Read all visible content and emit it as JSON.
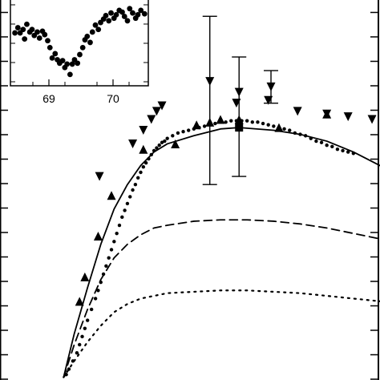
{
  "chart_data": [
    {
      "id": "main",
      "type": "scatter",
      "series": [
        {
          "kind": "dense-points",
          "marker": "small-dot",
          "points": [
            [
              0.02,
              0.02
            ],
            [
              0.03,
              0.04
            ],
            [
              0.045,
              0.07
            ],
            [
              0.06,
              0.1
            ],
            [
              0.07,
              0.13
            ],
            [
              0.08,
              0.16
            ],
            [
              0.09,
              0.19
            ],
            [
              0.1,
              0.22
            ],
            [
              0.115,
              0.26
            ],
            [
              0.13,
              0.3
            ],
            [
              0.14,
              0.33
            ],
            [
              0.15,
              0.36
            ],
            [
              0.16,
              0.39
            ],
            [
              0.17,
              0.42
            ],
            [
              0.18,
              0.45
            ],
            [
              0.19,
              0.48
            ],
            [
              0.2,
              0.51
            ],
            [
              0.21,
              0.54
            ],
            [
              0.22,
              0.57
            ],
            [
              0.23,
              0.6
            ],
            [
              0.24,
              0.625
            ],
            [
              0.25,
              0.65
            ],
            [
              0.26,
              0.675
            ],
            [
              0.27,
              0.7
            ],
            [
              0.28,
              0.72
            ],
            [
              0.29,
              0.745
            ],
            [
              0.3,
              0.765
            ],
            [
              0.31,
              0.785
            ],
            [
              0.32,
              0.8
            ],
            [
              0.33,
              0.815
            ],
            [
              0.34,
              0.83
            ],
            [
              0.35,
              0.845
            ],
            [
              0.36,
              0.855
            ],
            [
              0.37,
              0.865
            ],
            [
              0.38,
              0.875
            ],
            [
              0.39,
              0.88
            ],
            [
              0.4,
              0.89
            ],
            [
              0.42,
              0.9
            ],
            [
              0.44,
              0.91
            ],
            [
              0.46,
              0.915
            ],
            [
              0.48,
              0.92
            ],
            [
              0.5,
              0.925
            ],
            [
              0.52,
              0.93
            ],
            [
              0.54,
              0.935
            ],
            [
              0.56,
              0.94
            ],
            [
              0.58,
              0.945
            ],
            [
              0.6,
              0.95
            ],
            [
              0.62,
              0.95
            ],
            [
              0.64,
              0.955
            ],
            [
              0.66,
              0.955
            ],
            [
              0.68,
              0.955
            ],
            [
              0.7,
              0.955
            ],
            [
              0.72,
              0.95
            ],
            [
              0.74,
              0.95
            ],
            [
              0.76,
              0.945
            ],
            [
              0.78,
              0.94
            ],
            [
              0.8,
              0.935
            ],
            [
              0.82,
              0.93
            ],
            [
              0.84,
              0.925
            ],
            [
              0.86,
              0.92
            ],
            [
              0.88,
              0.91
            ],
            [
              0.9,
              0.905
            ],
            [
              0.92,
              0.9
            ],
            [
              0.94,
              0.89
            ],
            [
              0.96,
              0.88
            ],
            [
              0.98,
              0.875
            ],
            [
              1.0,
              0.865
            ],
            [
              1.02,
              0.86
            ],
            [
              1.04,
              0.85
            ],
            [
              1.06,
              0.845
            ],
            [
              1.08,
              0.84
            ],
            [
              1.1,
              0.835
            ]
          ]
        },
        {
          "kind": "triangles-down",
          "marker": "triangle-down",
          "points": [
            [
              0.145,
              0.75
            ],
            [
              0.27,
              0.87
            ],
            [
              0.31,
              0.92
            ],
            [
              0.34,
              0.96
            ],
            [
              0.36,
              0.99
            ],
            [
              0.38,
              1.01
            ],
            [
              0.66,
              1.02
            ],
            [
              0.78,
              1.03
            ],
            [
              0.89,
              0.99
            ],
            [
              1.0,
              0.98
            ],
            [
              1.08,
              0.97
            ],
            [
              1.17,
              0.96
            ]
          ]
        },
        {
          "kind": "triangles-up",
          "marker": "triangle-up",
          "points": [
            [
              0.07,
              0.29
            ],
            [
              0.09,
              0.38
            ],
            [
              0.14,
              0.53
            ],
            [
              0.19,
              0.68
            ],
            [
              0.31,
              0.85
            ],
            [
              0.43,
              0.87
            ],
            [
              0.51,
              0.94
            ],
            [
              0.56,
              0.95
            ],
            [
              0.6,
              0.96
            ],
            [
              0.67,
              0.96
            ],
            [
              0.82,
              0.93
            ],
            [
              1.0,
              0.98
            ]
          ]
        },
        {
          "kind": "squares",
          "marker": "square",
          "points": [
            [
              0.67,
              0.93
            ]
          ]
        },
        {
          "kind": "error-bars",
          "marker": "triangle-down",
          "points": [
            {
              "x": 0.56,
              "y": 1.1,
              "low": 0.72,
              "high": 1.34
            },
            {
              "x": 0.67,
              "y": 1.06,
              "low": 0.75,
              "high": 1.19
            },
            {
              "x": 0.79,
              "y": 1.08,
              "low": 1.02,
              "high": 1.14
            }
          ]
        },
        {
          "kind": "solid-curve",
          "style": "solid",
          "points": [
            [
              0.01,
              0.01
            ],
            [
              0.05,
              0.17
            ],
            [
              0.1,
              0.34
            ],
            [
              0.15,
              0.5
            ],
            [
              0.2,
              0.63
            ],
            [
              0.25,
              0.72
            ],
            [
              0.3,
              0.79
            ],
            [
              0.35,
              0.84
            ],
            [
              0.4,
              0.87
            ],
            [
              0.5,
              0.9
            ],
            [
              0.6,
              0.925
            ],
            [
              0.67,
              0.93
            ],
            [
              0.8,
              0.92
            ],
            [
              0.9,
              0.905
            ],
            [
              1.0,
              0.88
            ],
            [
              1.1,
              0.84
            ],
            [
              1.2,
              0.79
            ]
          ]
        },
        {
          "kind": "dashed-curve",
          "style": "dashed",
          "points": [
            [
              0.01,
              0.01
            ],
            [
              0.05,
              0.13
            ],
            [
              0.1,
              0.26
            ],
            [
              0.15,
              0.37
            ],
            [
              0.2,
              0.45
            ],
            [
              0.25,
              0.5
            ],
            [
              0.3,
              0.535
            ],
            [
              0.35,
              0.56
            ],
            [
              0.4,
              0.57
            ],
            [
              0.5,
              0.585
            ],
            [
              0.6,
              0.59
            ],
            [
              0.7,
              0.59
            ],
            [
              0.8,
              0.585
            ],
            [
              0.9,
              0.575
            ],
            [
              1.0,
              0.56
            ],
            [
              1.1,
              0.54
            ],
            [
              1.2,
              0.52
            ]
          ]
        },
        {
          "kind": "dotted-curve",
          "style": "dotted",
          "points": [
            [
              0.01,
              0.01
            ],
            [
              0.05,
              0.07
            ],
            [
              0.1,
              0.14
            ],
            [
              0.15,
              0.2
            ],
            [
              0.2,
              0.25
            ],
            [
              0.25,
              0.28
            ],
            [
              0.3,
              0.3
            ],
            [
              0.35,
              0.31
            ],
            [
              0.4,
              0.32
            ],
            [
              0.5,
              0.325
            ],
            [
              0.6,
              0.33
            ],
            [
              0.7,
              0.33
            ],
            [
              0.8,
              0.325
            ],
            [
              0.9,
              0.32
            ],
            [
              1.0,
              0.31
            ],
            [
              1.1,
              0.3
            ],
            [
              1.2,
              0.29
            ]
          ]
        }
      ],
      "xlim": [
        0,
        1.2
      ],
      "ylim": [
        0,
        1.4
      ],
      "grid": false
    },
    {
      "id": "inset",
      "type": "scatter",
      "x_ticks": [
        "69",
        "70"
      ],
      "xlim": [
        68.6,
        70.45
      ],
      "ylim": [
        0,
        1
      ],
      "series": [
        {
          "marker": "filled-circle",
          "points": [
            [
              68.66,
              0.62
            ],
            [
              68.7,
              0.68
            ],
            [
              68.73,
              0.62
            ],
            [
              68.77,
              0.66
            ],
            [
              68.79,
              0.55
            ],
            [
              68.82,
              0.72
            ],
            [
              68.86,
              0.63
            ],
            [
              68.89,
              0.66
            ],
            [
              68.92,
              0.59
            ],
            [
              68.96,
              0.63
            ],
            [
              68.99,
              0.56
            ],
            [
              69.03,
              0.64
            ],
            [
              69.06,
              0.6
            ],
            [
              69.1,
              0.53
            ],
            [
              69.13,
              0.45
            ],
            [
              69.16,
              0.33
            ],
            [
              69.2,
              0.38
            ],
            [
              69.23,
              0.31
            ],
            [
              69.26,
              0.27
            ],
            [
              69.3,
              0.3
            ],
            [
              69.33,
              0.22
            ],
            [
              69.36,
              0.26
            ],
            [
              69.4,
              0.14
            ],
            [
              69.43,
              0.26
            ],
            [
              69.46,
              0.31
            ],
            [
              69.5,
              0.27
            ],
            [
              69.53,
              0.37
            ],
            [
              69.57,
              0.45
            ],
            [
              69.6,
              0.54
            ],
            [
              69.63,
              0.58
            ],
            [
              69.67,
              0.51
            ],
            [
              69.7,
              0.63
            ],
            [
              69.74,
              0.71
            ],
            [
              69.78,
              0.66
            ],
            [
              69.81,
              0.74
            ],
            [
              69.85,
              0.78
            ],
            [
              69.88,
              0.82
            ],
            [
              69.92,
              0.76
            ],
            [
              69.95,
              0.85
            ],
            [
              69.99,
              0.79
            ],
            [
              70.02,
              0.83
            ],
            [
              70.06,
              0.88
            ],
            [
              70.1,
              0.86
            ],
            [
              70.13,
              0.81
            ],
            [
              70.17,
              0.76
            ],
            [
              70.2,
              0.9
            ],
            [
              70.24,
              0.85
            ],
            [
              70.28,
              0.79
            ],
            [
              70.31,
              0.83
            ],
            [
              70.35,
              0.88
            ],
            [
              70.4,
              0.84
            ]
          ]
        }
      ]
    }
  ]
}
